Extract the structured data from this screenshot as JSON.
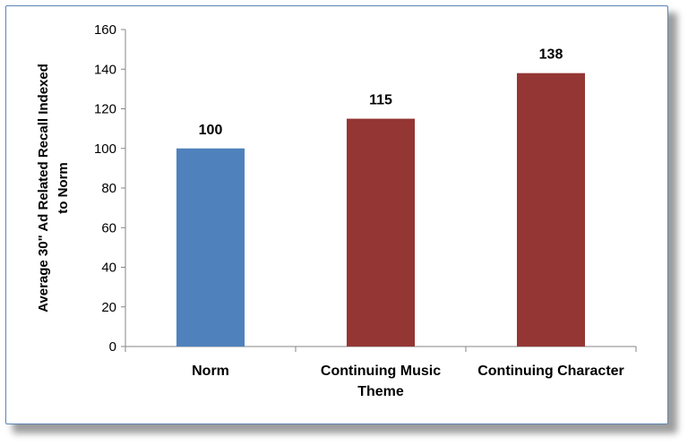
{
  "chart_data": {
    "type": "bar",
    "categories": [
      [
        "Norm"
      ],
      [
        "Continuing Music",
        "Theme"
      ],
      [
        "Continuing Character"
      ]
    ],
    "values": [
      100,
      115,
      138
    ],
    "data_labels": [
      "100",
      "115",
      "138"
    ],
    "colors": [
      "#4f81bd",
      "#943634",
      "#943634"
    ],
    "ylabel_lines": [
      "Average 30\" Ad Related Recall Indexed",
      "to Norm"
    ],
    "ylim": [
      0,
      160
    ],
    "yticks": [
      0,
      20,
      40,
      60,
      80,
      100,
      120,
      140,
      160
    ],
    "grid": false,
    "legend": "none"
  }
}
